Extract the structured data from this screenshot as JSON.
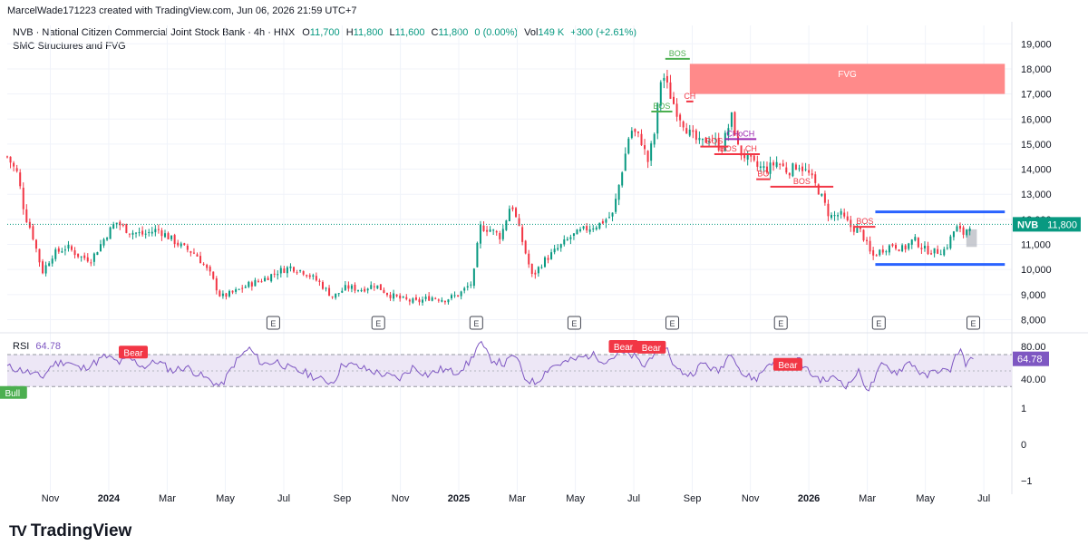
{
  "credit": "MarcelWade171223 created with TradingView.com, Jun 06, 2026 21:59 UTC+7",
  "legend": {
    "title": "NVB · National Citizen Commercial Joint Stock Bank · 4h · HNX",
    "o_label": "O",
    "o": "11,700",
    "h_label": "H",
    "h": "11,800",
    "l_label": "L",
    "l": "11,600",
    "c_label": "C",
    "c": "11,800",
    "change": "0 (0.00%)",
    "vol_label": "Vol",
    "vol": "149 K",
    "vol_change": "+300 (+2.61%)",
    "indicator": "SMC Structures and FVG"
  },
  "rsi_legend": {
    "label": "RSI",
    "value": "64.78"
  },
  "brand": {
    "mark": "TV",
    "name": "TradingView"
  },
  "colors": {
    "up": "#089981",
    "down": "#f23645",
    "bos_green": "#4caf50",
    "struct_red": "#f23645",
    "choch_purple": "#9c27b0",
    "fvg": "#ff8a8a",
    "range_blue": "#2962ff",
    "rsi_line": "#7e57c2",
    "rsi_band": "#ede7f6",
    "axis_text": "#131722"
  },
  "chart_data": [
    {
      "type": "candlestick",
      "symbol": "NVB",
      "last_price": 11800,
      "price_label": "11,800",
      "y_ticks": [
        8000,
        9000,
        10000,
        11000,
        12000,
        13000,
        14000,
        15000,
        16000,
        17000,
        18000,
        19000
      ],
      "y_tick_labels": [
        "8,000",
        "9,000",
        "10,000",
        "11,000",
        "12,000",
        "13,000",
        "14,000",
        "15,000",
        "16,000",
        "17,000",
        "18,000",
        "19,000"
      ],
      "ylim": [
        7800,
        19300
      ],
      "x_ticks": [
        {
          "label": "Nov",
          "x": 2023.833,
          "bold": false
        },
        {
          "label": "2024",
          "x": 2024.0,
          "bold": true
        },
        {
          "label": "Mar",
          "x": 2024.167,
          "bold": false
        },
        {
          "label": "May",
          "x": 2024.333,
          "bold": false
        },
        {
          "label": "Jul",
          "x": 2024.5,
          "bold": false
        },
        {
          "label": "Sep",
          "x": 2024.667,
          "bold": false
        },
        {
          "label": "Nov",
          "x": 2024.833,
          "bold": false
        },
        {
          "label": "2025",
          "x": 2025.0,
          "bold": true
        },
        {
          "label": "Mar",
          "x": 2025.167,
          "bold": false
        },
        {
          "label": "May",
          "x": 2025.333,
          "bold": false
        },
        {
          "label": "Jul",
          "x": 2025.5,
          "bold": false
        },
        {
          "label": "Sep",
          "x": 2025.667,
          "bold": false
        },
        {
          "label": "Nov",
          "x": 2025.833,
          "bold": false
        },
        {
          "label": "2026",
          "x": 2026.0,
          "bold": true
        },
        {
          "label": "Mar",
          "x": 2026.167,
          "bold": false
        },
        {
          "label": "May",
          "x": 2026.333,
          "bold": false
        },
        {
          "label": "Jul",
          "x": 2026.5,
          "bold": false
        }
      ],
      "xlim": [
        2023.71,
        2026.58
      ],
      "price_path": [
        [
          2023.71,
          14500
        ],
        [
          2023.74,
          13800
        ],
        [
          2023.76,
          12200
        ],
        [
          2023.78,
          11500
        ],
        [
          2023.81,
          9900
        ],
        [
          2023.84,
          10600
        ],
        [
          2023.88,
          10900
        ],
        [
          2023.92,
          10500
        ],
        [
          2023.95,
          10400
        ],
        [
          2023.99,
          11300
        ],
        [
          2024.02,
          11900
        ],
        [
          2024.06,
          11500
        ],
        [
          2024.1,
          11400
        ],
        [
          2024.14,
          11600
        ],
        [
          2024.18,
          11200
        ],
        [
          2024.21,
          10900
        ],
        [
          2024.25,
          10600
        ],
        [
          2024.29,
          9800
        ],
        [
          2024.32,
          8900
        ],
        [
          2024.36,
          9100
        ],
        [
          2024.4,
          9400
        ],
        [
          2024.44,
          9600
        ],
        [
          2024.48,
          9900
        ],
        [
          2024.52,
          10100
        ],
        [
          2024.56,
          9900
        ],
        [
          2024.6,
          9500
        ],
        [
          2024.64,
          8900
        ],
        [
          2024.68,
          9300
        ],
        [
          2024.72,
          9200
        ],
        [
          2024.76,
          9400
        ],
        [
          2024.8,
          9000
        ],
        [
          2024.84,
          8800
        ],
        [
          2024.88,
          8700
        ],
        [
          2024.92,
          8900
        ],
        [
          2024.96,
          8800
        ],
        [
          2025.0,
          9000
        ],
        [
          2025.04,
          9500
        ],
        [
          2025.06,
          11700
        ],
        [
          2025.09,
          11600
        ],
        [
          2025.12,
          11300
        ],
        [
          2025.15,
          12700
        ],
        [
          2025.18,
          11200
        ],
        [
          2025.21,
          9700
        ],
        [
          2025.24,
          10300
        ],
        [
          2025.28,
          10800
        ],
        [
          2025.32,
          11300
        ],
        [
          2025.36,
          11600
        ],
        [
          2025.4,
          11800
        ],
        [
          2025.44,
          12200
        ],
        [
          2025.47,
          14200
        ],
        [
          2025.49,
          15600
        ],
        [
          2025.52,
          15200
        ],
        [
          2025.54,
          14300
        ],
        [
          2025.56,
          15500
        ],
        [
          2025.58,
          17900
        ],
        [
          2025.6,
          17100
        ],
        [
          2025.62,
          16400
        ],
        [
          2025.64,
          15900
        ],
        [
          2025.66,
          15400
        ],
        [
          2025.69,
          15000
        ],
        [
          2025.72,
          15300
        ],
        [
          2025.75,
          14800
        ],
        [
          2025.78,
          16100
        ],
        [
          2025.8,
          14700
        ],
        [
          2025.82,
          14500
        ],
        [
          2025.85,
          14100
        ],
        [
          2025.88,
          14000
        ],
        [
          2025.91,
          14300
        ],
        [
          2025.94,
          13900
        ],
        [
          2025.97,
          14200
        ],
        [
          2026.0,
          13800
        ],
        [
          2026.03,
          13100
        ],
        [
          2026.06,
          12100
        ],
        [
          2026.09,
          12200
        ],
        [
          2026.12,
          11700
        ],
        [
          2026.15,
          11500
        ],
        [
          2026.18,
          10500
        ],
        [
          2026.21,
          10800
        ],
        [
          2026.24,
          11000
        ],
        [
          2026.27,
          10800
        ],
        [
          2026.3,
          11200
        ],
        [
          2026.33,
          10800
        ],
        [
          2026.36,
          10700
        ],
        [
          2026.39,
          10800
        ],
        [
          2026.42,
          11700
        ],
        [
          2026.44,
          11400
        ],
        [
          2026.46,
          11800
        ]
      ],
      "earnings_markers": [
        2024.47,
        2024.77,
        2025.05,
        2025.33,
        2025.61,
        2025.92,
        2026.2,
        2026.47
      ],
      "earnings_label": "E",
      "structures": [
        {
          "label": "BOS",
          "color": "green",
          "x0": 2025.55,
          "x1": 2025.61,
          "y": 16300
        },
        {
          "label": "BOS",
          "color": "green",
          "x0": 2025.59,
          "x1": 2025.66,
          "y": 18400
        },
        {
          "label": "CH",
          "color": "red",
          "x0": 2025.65,
          "x1": 2025.67,
          "y": 16700
        },
        {
          "label": "BOS",
          "color": "red",
          "x0": 2025.69,
          "x1": 2025.77,
          "y": 14900
        },
        {
          "label": "BOS",
          "color": "red",
          "x0": 2025.73,
          "x1": 2025.81,
          "y": 14600
        },
        {
          "label": "CHoCH",
          "color": "purple",
          "x0": 2025.76,
          "x1": 2025.85,
          "y": 15200
        },
        {
          "label": "CH",
          "color": "red",
          "x0": 2025.81,
          "x1": 2025.86,
          "y": 14600
        },
        {
          "label": "BO",
          "color": "red",
          "x0": 2025.85,
          "x1": 2025.89,
          "y": 13600
        },
        {
          "label": "BOS",
          "color": "red",
          "x0": 2025.89,
          "x1": 2026.07,
          "y": 13300
        },
        {
          "label": "BOS",
          "color": "red",
          "x0": 2026.13,
          "x1": 2026.19,
          "y": 11700
        }
      ],
      "fvg": {
        "label": "FVG",
        "x0": 2025.66,
        "x1": 2026.56,
        "y0": 17000,
        "y1": 18200
      },
      "range_box": {
        "top": 12300,
        "bottom": 10200,
        "x0": 2026.19,
        "x1": 2026.56
      },
      "gray_box": {
        "x0": 2026.45,
        "x1": 2026.48,
        "y0": 10900,
        "y1": 11600
      }
    },
    {
      "type": "line",
      "name": "RSI",
      "value_label": "64.78",
      "current": 64.78,
      "y_ticks": [
        -1,
        0,
        1,
        40,
        80
      ],
      "y_tick_labels": [
        "−1",
        "0",
        "1",
        "40.00",
        "80.00"
      ],
      "band": [
        30,
        70
      ],
      "mid": 50,
      "rsi_path": [
        [
          2023.71,
          55
        ],
        [
          2023.76,
          50
        ],
        [
          2023.81,
          42
        ],
        [
          2023.84,
          58
        ],
        [
          2023.88,
          62
        ],
        [
          2023.92,
          52
        ],
        [
          2023.96,
          60
        ],
        [
          2023.99,
          68
        ],
        [
          2024.03,
          60
        ],
        [
          2024.06,
          65
        ],
        [
          2024.1,
          55
        ],
        [
          2024.14,
          62
        ],
        [
          2024.18,
          50
        ],
        [
          2024.22,
          55
        ],
        [
          2024.26,
          45
        ],
        [
          2024.29,
          38
        ],
        [
          2024.32,
          30
        ],
        [
          2024.36,
          60
        ],
        [
          2024.4,
          78
        ],
        [
          2024.44,
          58
        ],
        [
          2024.48,
          62
        ],
        [
          2024.52,
          52
        ],
        [
          2024.56,
          48
        ],
        [
          2024.6,
          40
        ],
        [
          2024.64,
          35
        ],
        [
          2024.67,
          60
        ],
        [
          2024.71,
          55
        ],
        [
          2024.75,
          50
        ],
        [
          2024.79,
          45
        ],
        [
          2024.83,
          40
        ],
        [
          2024.87,
          55
        ],
        [
          2024.91,
          45
        ],
        [
          2024.95,
          52
        ],
        [
          2024.99,
          48
        ],
        [
          2025.03,
          60
        ],
        [
          2025.06,
          85
        ],
        [
          2025.09,
          65
        ],
        [
          2025.13,
          58
        ],
        [
          2025.16,
          70
        ],
        [
          2025.19,
          40
        ],
        [
          2025.22,
          35
        ],
        [
          2025.26,
          55
        ],
        [
          2025.3,
          60
        ],
        [
          2025.34,
          65
        ],
        [
          2025.38,
          70
        ],
        [
          2025.42,
          62
        ],
        [
          2025.46,
          72
        ],
        [
          2025.5,
          68
        ],
        [
          2025.53,
          55
        ],
        [
          2025.56,
          75
        ],
        [
          2025.59,
          82
        ],
        [
          2025.62,
          52
        ],
        [
          2025.66,
          45
        ],
        [
          2025.7,
          60
        ],
        [
          2025.74,
          48
        ],
        [
          2025.78,
          75
        ],
        [
          2025.81,
          45
        ],
        [
          2025.85,
          40
        ],
        [
          2025.89,
          62
        ],
        [
          2025.93,
          55
        ],
        [
          2025.97,
          65
        ],
        [
          2026.0,
          48
        ],
        [
          2026.04,
          38
        ],
        [
          2026.08,
          42
        ],
        [
          2026.11,
          30
        ],
        [
          2026.14,
          50
        ],
        [
          2026.17,
          25
        ],
        [
          2026.21,
          58
        ],
        [
          2026.25,
          48
        ],
        [
          2026.29,
          62
        ],
        [
          2026.33,
          42
        ],
        [
          2026.37,
          52
        ],
        [
          2026.4,
          48
        ],
        [
          2026.43,
          78
        ],
        [
          2026.45,
          58
        ],
        [
          2026.47,
          65
        ]
      ],
      "signals": [
        {
          "label": "Bull",
          "color": "green",
          "x": 2023.725,
          "y": 22
        },
        {
          "label": "Bear",
          "color": "red",
          "x": 2024.07,
          "y": 73
        },
        {
          "label": "Bear",
          "color": "red",
          "x": 2025.47,
          "y": 80
        },
        {
          "label": "Bear",
          "color": "red",
          "x": 2025.55,
          "y": 79
        },
        {
          "label": "Bear",
          "color": "red",
          "x": 2025.94,
          "y": 58
        }
      ]
    }
  ]
}
